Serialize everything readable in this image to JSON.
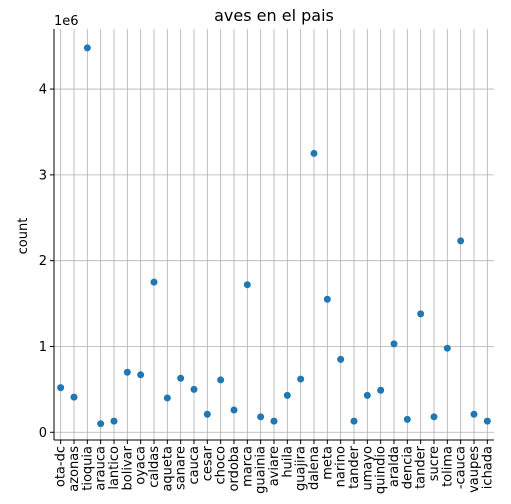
{
  "chart_data": {
    "type": "scatter",
    "title": "aves en el pais",
    "xlabel": "",
    "ylabel": "count",
    "y_multiplier_label": "1e6",
    "ylim": [
      -90000,
      4700000
    ],
    "yticks": [
      0,
      1000000,
      2000000,
      3000000,
      4000000
    ],
    "ytick_labels": [
      "0",
      "1",
      "2",
      "3",
      "4"
    ],
    "grid": true,
    "point_color": "#1f77b4",
    "categories": [
      "bogota-dc",
      "amazonas",
      "antioquia",
      "arauca",
      "atlantico",
      "bolivar",
      "boyaca",
      "caldas",
      "caqueta",
      "casanare",
      "cauca",
      "cesar",
      "choco",
      "cordoba",
      "cundinamarca",
      "guainia",
      "guaviare",
      "huila",
      "la-guajira",
      "magdalena",
      "meta",
      "narino",
      "norte-de-santander",
      "putumayo",
      "quindio",
      "risaralda",
      "providencia",
      "santander",
      "sucre",
      "tolima",
      "valle-del-cauca",
      "vaupes",
      "vichada"
    ],
    "tick_labels": [
      "ota-dc",
      "azonas",
      "tioquia",
      "arauca",
      "lantico",
      "bolivar",
      "oyaca",
      "caldas",
      "aqueta",
      "sanare",
      "cauca",
      "cesar",
      "choco",
      "ordoba",
      "marca",
      "guainia",
      "aviare",
      "huila",
      "guajira",
      "dalena",
      "meta",
      "narino",
      "tander",
      "umayo",
      "quindio",
      "aralda",
      "dencia",
      "tander",
      "sucre",
      "tolima",
      "-cauca",
      "vaupes",
      "ichada"
    ],
    "values": [
      520000,
      410000,
      4480000,
      100000,
      130000,
      700000,
      670000,
      1750000,
      400000,
      630000,
      500000,
      210000,
      610000,
      260000,
      1720000,
      180000,
      130000,
      430000,
      620000,
      3250000,
      1550000,
      850000,
      130000,
      430000,
      490000,
      1030000,
      150000,
      1380000,
      180000,
      980000,
      2230000,
      210000,
      130000
    ]
  }
}
